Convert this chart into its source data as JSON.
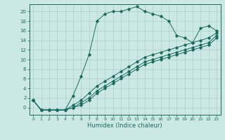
{
  "xlabel": "Humidex (Indice chaleur)",
  "background_color": "#cce8e6",
  "grid_color": "#aacfcc",
  "line_color": "#1a6b5e",
  "xlim": [
    -0.5,
    23.5
  ],
  "ylim": [
    -1.5,
    21.5
  ],
  "xticks": [
    0,
    1,
    2,
    3,
    4,
    5,
    6,
    7,
    8,
    9,
    10,
    11,
    12,
    13,
    14,
    15,
    16,
    17,
    18,
    19,
    20,
    21,
    22,
    23
  ],
  "yticks": [
    0,
    2,
    4,
    6,
    8,
    10,
    12,
    14,
    16,
    18,
    20
  ],
  "line1_x": [
    0,
    1,
    2,
    3,
    4,
    5,
    6,
    7,
    8,
    9,
    10,
    11,
    12,
    13,
    14,
    15,
    16,
    17,
    18,
    19,
    20,
    21,
    22,
    23
  ],
  "line1_y": [
    1.5,
    -0.5,
    -0.5,
    -0.5,
    -0.5,
    2.5,
    6.5,
    11,
    18,
    19.5,
    20,
    20,
    20.5,
    21,
    20,
    19.5,
    19,
    18,
    15,
    14.5,
    13.5,
    16.5,
    17,
    16
  ],
  "line2_x": [
    0,
    1,
    2,
    3,
    4,
    5,
    6,
    7,
    8,
    9,
    10,
    11,
    12,
    13,
    14,
    15,
    16,
    17,
    18,
    19,
    20,
    21,
    22,
    23
  ],
  "line2_y": [
    1.5,
    -0.5,
    -0.5,
    -0.5,
    -0.5,
    0.5,
    1.5,
    3.0,
    4.5,
    5.5,
    6.5,
    7.5,
    8.5,
    9.5,
    10.5,
    11.0,
    11.5,
    12.0,
    12.5,
    13.0,
    13.5,
    14.0,
    14.5,
    15.5
  ],
  "line3_x": [
    0,
    1,
    2,
    3,
    4,
    5,
    6,
    7,
    8,
    9,
    10,
    11,
    12,
    13,
    14,
    15,
    16,
    17,
    18,
    19,
    20,
    21,
    22,
    23
  ],
  "line3_y": [
    1.5,
    -0.5,
    -0.5,
    -0.5,
    -0.5,
    0.0,
    1.0,
    2.0,
    3.5,
    4.5,
    5.5,
    6.5,
    7.5,
    8.5,
    9.5,
    10.0,
    10.5,
    11.0,
    11.5,
    12.0,
    12.5,
    13.0,
    13.5,
    15.0
  ],
  "line4_x": [
    0,
    1,
    2,
    3,
    4,
    5,
    6,
    7,
    8,
    9,
    10,
    11,
    12,
    13,
    14,
    15,
    16,
    17,
    18,
    19,
    20,
    21,
    22,
    23
  ],
  "line4_y": [
    1.5,
    -0.5,
    -0.5,
    -0.5,
    -0.5,
    0.0,
    0.5,
    1.5,
    3.0,
    4.0,
    5.0,
    6.0,
    7.0,
    8.0,
    9.0,
    9.5,
    10.0,
    10.5,
    11.0,
    11.5,
    12.0,
    12.5,
    13.0,
    14.5
  ]
}
